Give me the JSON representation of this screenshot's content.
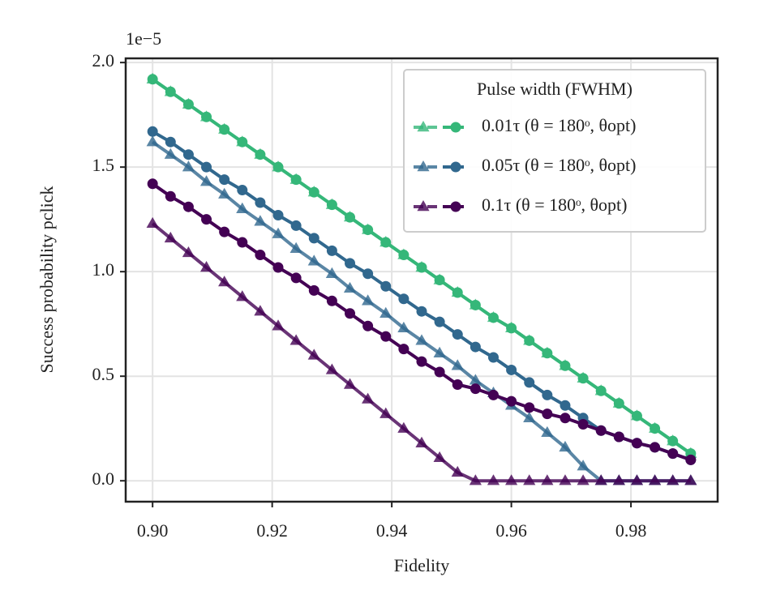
{
  "chart_data": {
    "type": "line",
    "offset_label": "1e−5",
    "x_label": "Fidelity",
    "y_label": "Success probability pclick",
    "legend_title": "Pulse width (FWHM)",
    "legend_position": "upper right",
    "grid": true,
    "xlim": [
      0.8955,
      0.9945
    ],
    "ylim": [
      -0.1,
      2.02
    ],
    "xticks": [
      {
        "value": 0.9,
        "label": "0.90"
      },
      0.92,
      0.94,
      0.96,
      0.98
    ],
    "yticks": [
      {
        "value": 0,
        "label": "0.0"
      },
      0.5,
      {
        "value": 1,
        "label": "1.0"
      },
      1.5,
      {
        "value": 2,
        "label": "2.0"
      }
    ],
    "x": [
      0.9,
      0.903,
      0.906,
      0.909,
      0.912,
      0.915,
      0.918,
      0.921,
      0.924,
      0.927,
      0.93,
      0.933,
      0.936,
      0.939,
      0.942,
      0.945,
      0.948,
      0.951,
      0.954,
      0.957,
      0.96,
      0.963,
      0.966,
      0.969,
      0.972,
      0.975,
      0.978,
      0.981,
      0.984,
      0.987,
      0.99
    ],
    "series": [
      {
        "name": "0.01τ (θ = 180ᵒ, θopt)",
        "color": "#35b779",
        "lines": [
          {
            "marker": "triangle",
            "values": [
              1.92,
              1.86,
              1.8,
              1.74,
              1.68,
              1.62,
              1.56,
              1.5,
              1.44,
              1.38,
              1.32,
              1.26,
              1.2,
              1.14,
              1.08,
              1.02,
              0.96,
              0.9,
              0.84,
              0.78,
              0.73,
              0.67,
              0.61,
              0.55,
              0.49,
              0.43,
              0.37,
              0.31,
              0.25,
              0.19,
              0.13
            ]
          },
          {
            "marker": "circle",
            "values": [
              1.92,
              1.86,
              1.8,
              1.74,
              1.68,
              1.62,
              1.56,
              1.5,
              1.44,
              1.38,
              1.32,
              1.26,
              1.2,
              1.14,
              1.08,
              1.02,
              0.96,
              0.9,
              0.84,
              0.78,
              0.73,
              0.67,
              0.61,
              0.55,
              0.49,
              0.43,
              0.37,
              0.31,
              0.25,
              0.19,
              0.13
            ]
          }
        ]
      },
      {
        "name": "0.05τ (θ = 180ᵒ, θopt)",
        "color": "#31688e",
        "lines": [
          {
            "marker": "triangle",
            "values": [
              1.62,
              1.56,
              1.5,
              1.43,
              1.37,
              1.3,
              1.24,
              1.18,
              1.11,
              1.05,
              0.99,
              0.92,
              0.86,
              0.8,
              0.73,
              0.67,
              0.61,
              0.55,
              0.48,
              0.42,
              0.36,
              0.3,
              0.23,
              0.16,
              0.07,
              0,
              0,
              0,
              0,
              0,
              0
            ]
          },
          {
            "marker": "circle",
            "values": [
              1.67,
              1.62,
              1.56,
              1.5,
              1.44,
              1.39,
              1.33,
              1.27,
              1.22,
              1.16,
              1.1,
              1.04,
              0.99,
              0.93,
              0.87,
              0.81,
              0.76,
              0.7,
              0.64,
              0.59,
              0.53,
              0.47,
              0.41,
              0.36,
              0.3,
              0.24,
              0.21,
              0.18,
              0.16,
              0.13,
              0.1
            ]
          }
        ]
      },
      {
        "name": "0.1τ (θ = 180ᵒ, θopt)",
        "color": "#440154",
        "lines": [
          {
            "marker": "triangle",
            "values": [
              1.23,
              1.16,
              1.09,
              1.02,
              0.95,
              0.88,
              0.81,
              0.74,
              0.67,
              0.6,
              0.53,
              0.46,
              0.39,
              0.32,
              0.25,
              0.18,
              0.11,
              0.04,
              0,
              0,
              0,
              0,
              0,
              0,
              0,
              0,
              0,
              0,
              0,
              0,
              0
            ]
          },
          {
            "marker": "circle",
            "values": [
              1.42,
              1.36,
              1.31,
              1.25,
              1.19,
              1.14,
              1.08,
              1.02,
              0.97,
              0.91,
              0.86,
              0.8,
              0.74,
              0.69,
              0.63,
              0.57,
              0.52,
              0.46,
              0.44,
              0.41,
              0.38,
              0.35,
              0.32,
              0.3,
              0.27,
              0.24,
              0.21,
              0.18,
              0.16,
              0.13,
              0.1
            ]
          }
        ]
      }
    ]
  }
}
